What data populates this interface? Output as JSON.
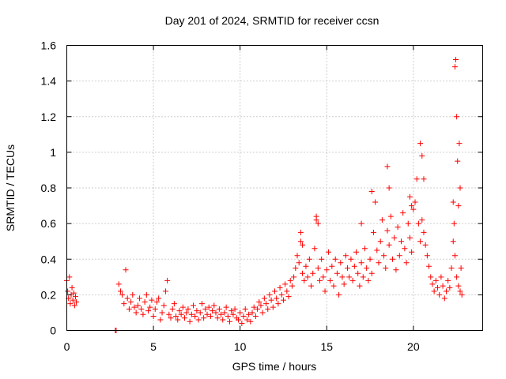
{
  "chart_data": {
    "type": "scatter",
    "title": "Day 201 of 2024, SRMTID for receiver ccsn",
    "xlabel": "GPS time / hours",
    "ylabel": "SRMTID / TECUs",
    "xlim": [
      0,
      24
    ],
    "ylim": [
      0,
      1.6
    ],
    "xticks": [
      0,
      5,
      10,
      15,
      20
    ],
    "xtick_labels": [
      "0",
      "5",
      "10",
      "15",
      "20"
    ],
    "yticks": [
      0,
      0.2,
      0.4,
      0.6,
      0.8,
      1.0,
      1.2,
      1.4,
      1.6
    ],
    "ytick_labels": [
      "0",
      "0.2",
      "0.4",
      "0.6",
      "0.8",
      "1",
      "1.2",
      "1.4",
      "1.6"
    ],
    "grid": true,
    "marker": "+",
    "color": "#ff0000",
    "series": [
      {
        "name": "SRMTID",
        "x": [
          0.0,
          0.05,
          0.1,
          0.15,
          0.2,
          0.25,
          0.3,
          0.35,
          0.4,
          0.45,
          0.5,
          0.55,
          2.8,
          2.85,
          3.0,
          3.1,
          3.2,
          3.3,
          3.4,
          3.5,
          3.6,
          3.7,
          3.8,
          3.9,
          4.0,
          4.1,
          4.2,
          4.3,
          4.4,
          4.5,
          4.6,
          4.7,
          4.8,
          4.9,
          5.0,
          5.1,
          5.2,
          5.3,
          5.4,
          5.5,
          5.6,
          5.7,
          5.8,
          5.9,
          6.0,
          6.1,
          6.2,
          6.3,
          6.4,
          6.5,
          6.6,
          6.7,
          6.8,
          6.9,
          7.0,
          7.1,
          7.2,
          7.3,
          7.4,
          7.5,
          7.6,
          7.7,
          7.8,
          7.9,
          8.0,
          8.1,
          8.2,
          8.3,
          8.4,
          8.5,
          8.6,
          8.7,
          8.8,
          8.9,
          9.0,
          9.1,
          9.2,
          9.3,
          9.4,
          9.5,
          9.6,
          9.7,
          9.8,
          9.9,
          10.0,
          10.1,
          10.2,
          10.3,
          10.4,
          10.5,
          10.6,
          10.7,
          10.8,
          10.9,
          11.0,
          11.1,
          11.2,
          11.3,
          11.4,
          11.5,
          11.6,
          11.7,
          11.8,
          11.9,
          12.0,
          12.1,
          12.2,
          12.3,
          12.4,
          12.5,
          12.6,
          12.7,
          12.8,
          12.9,
          13.0,
          13.1,
          13.2,
          13.3,
          13.4,
          13.5,
          13.6,
          13.7,
          13.8,
          13.9,
          14.0,
          14.1,
          14.2,
          14.3,
          14.4,
          14.5,
          14.6,
          14.7,
          14.8,
          14.9,
          15.0,
          15.1,
          15.2,
          15.3,
          15.4,
          15.5,
          15.6,
          15.7,
          15.8,
          15.9,
          16.0,
          16.1,
          16.2,
          16.3,
          16.4,
          16.5,
          16.6,
          16.7,
          16.8,
          16.9,
          17.0,
          17.1,
          17.2,
          17.3,
          17.4,
          17.5,
          17.6,
          17.7,
          17.8,
          17.9,
          18.0,
          18.1,
          18.2,
          18.3,
          18.4,
          18.5,
          18.6,
          18.7,
          18.8,
          18.9,
          19.0,
          19.1,
          19.2,
          19.3,
          19.4,
          19.5,
          19.6,
          19.7,
          19.8,
          19.9,
          20.0,
          20.1,
          20.2,
          20.3,
          20.4,
          20.5,
          20.6,
          20.7,
          20.8,
          20.9,
          21.0,
          21.1,
          21.2,
          21.3,
          21.4,
          21.5,
          21.6,
          21.7,
          21.8,
          21.9,
          22.0,
          22.1,
          22.2,
          22.3,
          22.4,
          22.5,
          22.6,
          22.7,
          22.8,
          22.3,
          22.35,
          22.4,
          22.45,
          22.5,
          22.55,
          22.6,
          22.65,
          22.7,
          22.75,
          18.5,
          18.6,
          20.4,
          20.5,
          20.6,
          14.4,
          14.5,
          19.8,
          19.9,
          13.5,
          13.6,
          17.0,
          17.6
        ],
        "y": [
          0.28,
          0.22,
          0.18,
          0.3,
          0.15,
          0.2,
          0.24,
          0.17,
          0.21,
          0.14,
          0.19,
          0.16,
          0.0,
          0.0,
          0.26,
          0.22,
          0.2,
          0.15,
          0.34,
          0.18,
          0.12,
          0.16,
          0.2,
          0.13,
          0.1,
          0.14,
          0.18,
          0.12,
          0.09,
          0.16,
          0.2,
          0.11,
          0.13,
          0.17,
          0.08,
          0.12,
          0.16,
          0.18,
          0.06,
          0.1,
          0.14,
          0.22,
          0.28,
          0.09,
          0.07,
          0.12,
          0.15,
          0.08,
          0.06,
          0.11,
          0.09,
          0.13,
          0.07,
          0.1,
          0.12,
          0.05,
          0.09,
          0.14,
          0.08,
          0.11,
          0.06,
          0.1,
          0.15,
          0.07,
          0.12,
          0.09,
          0.13,
          0.08,
          0.11,
          0.14,
          0.1,
          0.07,
          0.12,
          0.09,
          0.06,
          0.1,
          0.13,
          0.08,
          0.05,
          0.11,
          0.09,
          0.12,
          0.07,
          0.06,
          0.1,
          0.04,
          0.08,
          0.12,
          0.06,
          0.09,
          0.05,
          0.1,
          0.13,
          0.08,
          0.12,
          0.16,
          0.14,
          0.1,
          0.18,
          0.15,
          0.12,
          0.2,
          0.17,
          0.13,
          0.22,
          0.18,
          0.15,
          0.24,
          0.2,
          0.17,
          0.26,
          0.22,
          0.19,
          0.28,
          0.25,
          0.3,
          0.35,
          0.42,
          0.38,
          0.5,
          0.32,
          0.28,
          0.36,
          0.3,
          0.4,
          0.25,
          0.32,
          0.46,
          0.62,
          0.35,
          0.28,
          0.4,
          0.3,
          0.22,
          0.34,
          0.44,
          0.28,
          0.36,
          0.25,
          0.4,
          0.32,
          0.2,
          0.38,
          0.3,
          0.26,
          0.42,
          0.35,
          0.3,
          0.4,
          0.28,
          0.36,
          0.44,
          0.32,
          0.25,
          0.38,
          0.3,
          0.46,
          0.35,
          0.28,
          0.4,
          0.32,
          0.55,
          0.72,
          0.45,
          0.38,
          0.5,
          0.62,
          0.42,
          0.35,
          0.56,
          0.48,
          0.64,
          0.4,
          0.52,
          0.34,
          0.58,
          0.42,
          0.5,
          0.66,
          0.46,
          0.38,
          0.6,
          0.52,
          0.44,
          0.68,
          0.72,
          0.85,
          0.6,
          0.5,
          0.62,
          0.55,
          0.48,
          0.42,
          0.36,
          0.3,
          0.26,
          0.22,
          0.28,
          0.24,
          0.2,
          0.3,
          0.25,
          0.18,
          0.22,
          0.28,
          0.24,
          0.35,
          0.5,
          0.42,
          0.3,
          0.25,
          0.22,
          0.2,
          0.72,
          0.6,
          1.48,
          1.52,
          1.2,
          0.95,
          0.7,
          1.05,
          0.8,
          0.35,
          0.92,
          0.8,
          1.05,
          0.98,
          0.85,
          0.64,
          0.6,
          0.75,
          0.7,
          0.55,
          0.48,
          0.6,
          0.78
        ]
      }
    ]
  }
}
